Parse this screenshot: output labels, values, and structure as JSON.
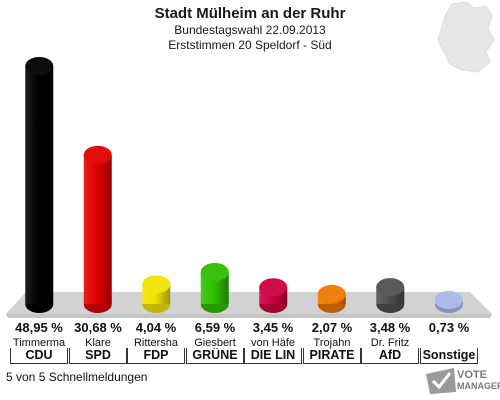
{
  "header": {
    "title": "Stadt Mülheim an der Ruhr",
    "subtitle": "Bundestagswahl 22.09.2013",
    "district": "Erststimmen 20 Speldorf - Süd"
  },
  "chart_data": {
    "type": "bar",
    "categories": [
      "CDU",
      "SPD",
      "FDP",
      "GRÜNE",
      "DIE LINKE",
      "PIRATEN",
      "AfD",
      "Sonstige"
    ],
    "candidates": [
      "Timmerma",
      "Klare",
      "Rittersha",
      "Giesbert",
      "von Häfe",
      "Trojahn",
      "Dr. Fritz",
      ""
    ],
    "party_labels": [
      "CDU",
      "SPD",
      "FDP",
      "GRÜNE",
      "DIE LIN",
      "PIRATE",
      "AfD",
      "Sonstige"
    ],
    "values": [
      48.95,
      30.68,
      4.04,
      6.59,
      3.45,
      2.07,
      3.48,
      0.73
    ],
    "value_labels": [
      "48,95 %",
      "30,68 %",
      "4,04 %",
      "6,59 %",
      "3,45 %",
      "2,07 %",
      "3,48 %",
      "0,73 %"
    ],
    "colors": [
      "#000000",
      "#e00000",
      "#f2e200",
      "#2fbf00",
      "#cc0040",
      "#f07800",
      "#505050",
      "#a8b8e8"
    ],
    "ylim": [
      0,
      48.95
    ]
  },
  "footer": {
    "status": "5 von 5 Schnellmeldungen"
  },
  "logo": {
    "line1": "VOTE",
    "line2": "MANAGER"
  }
}
